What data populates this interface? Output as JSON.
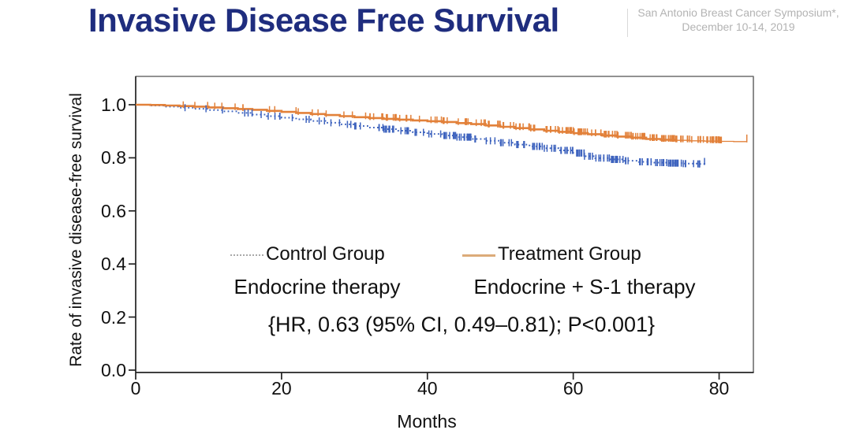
{
  "slide": {
    "title": "Invasive Disease Free Survival",
    "conference_line1": "San Antonio Breast Cancer Symposium*,",
    "conference_line2": "December 10-14, 2019"
  },
  "colors": {
    "title": "#1f2d7e",
    "conference_text": "#b3b3b3",
    "axis": "#222222",
    "box_border": "#6e6e6e",
    "control_curve": "#3e63be",
    "treatment_curve": "#e2813a",
    "control_legend_line": "#a9a9a9",
    "treatment_legend_line": "#dcab79"
  },
  "chart_data": {
    "type": "line",
    "subtype": "kaplan-meier-step",
    "title": "",
    "xlabel": "Months",
    "ylabel": "Rate of invasive disease-free survival",
    "xlim": [
      0,
      84.7
    ],
    "ylim": [
      0.0,
      1.107
    ],
    "xticks": [
      0,
      20,
      40,
      60,
      80
    ],
    "yticks": [
      0.0,
      0.2,
      0.4,
      0.6,
      0.8,
      1.0
    ],
    "grid": false,
    "legend_position": "center-inside",
    "annotation": "{HR, 0.63 (95% CI, 0.49–0.81); P<0.001}",
    "series": [
      {
        "name": "Control Group",
        "therapy": "Endocrine therapy",
        "line_style": "dotted",
        "x": [
          0,
          2,
          4,
          6,
          8,
          10,
          12,
          14,
          16,
          18,
          20,
          22,
          24,
          26,
          28,
          30,
          32,
          34,
          36,
          38,
          40,
          42,
          44,
          46,
          48,
          50,
          52,
          54,
          56,
          58,
          60,
          61.5,
          63,
          65,
          67,
          69,
          71,
          73,
          75,
          77,
          78
        ],
        "y": [
          1.0,
          0.997,
          0.993,
          0.989,
          0.985,
          0.98,
          0.975,
          0.969,
          0.963,
          0.957,
          0.951,
          0.945,
          0.939,
          0.932,
          0.926,
          0.92,
          0.914,
          0.908,
          0.902,
          0.896,
          0.89,
          0.884,
          0.878,
          0.871,
          0.864,
          0.857,
          0.85,
          0.843,
          0.836,
          0.828,
          0.818,
          0.806,
          0.799,
          0.794,
          0.789,
          0.785,
          0.782,
          0.78,
          0.778,
          0.777,
          0.776
        ],
        "censor_ticks": {
          "count": 175,
          "from": 1.5,
          "to": 77.5,
          "seed": 42
        }
      },
      {
        "name": "Treatment Group",
        "therapy": "Endocrine + S-1 therapy",
        "line_style": "solid",
        "x": [
          0,
          2,
          4,
          6,
          8,
          10,
          12,
          14,
          16,
          18,
          20,
          22,
          24,
          26,
          28,
          30,
          32,
          34,
          36,
          38,
          40,
          42,
          44,
          46,
          48,
          50,
          52,
          54,
          56,
          58,
          60,
          62,
          64,
          66,
          68,
          70,
          72,
          74,
          76,
          78,
          80,
          82,
          83.8
        ],
        "y": [
          1.0,
          0.999,
          0.997,
          0.995,
          0.993,
          0.99,
          0.987,
          0.984,
          0.981,
          0.977,
          0.973,
          0.969,
          0.965,
          0.961,
          0.957,
          0.953,
          0.95,
          0.947,
          0.944,
          0.941,
          0.938,
          0.935,
          0.931,
          0.927,
          0.922,
          0.917,
          0.912,
          0.907,
          0.902,
          0.898,
          0.893,
          0.889,
          0.884,
          0.88,
          0.876,
          0.871,
          0.868,
          0.866,
          0.864,
          0.863,
          0.862,
          0.861,
          0.861
        ],
        "censor_ticks": {
          "count": 195,
          "from": 1.5,
          "to": 80.5,
          "seed": 7
        }
      }
    ]
  }
}
